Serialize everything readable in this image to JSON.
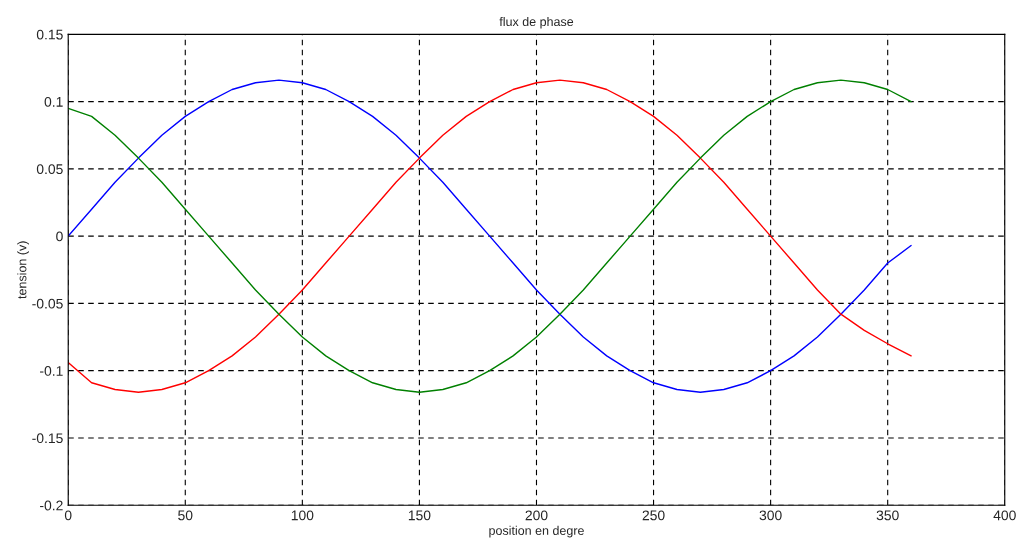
{
  "chart_data": {
    "type": "line",
    "title": "flux de phase",
    "xlabel": "position en degre",
    "ylabel": "tension (v)",
    "x": [
      0,
      10,
      20,
      30,
      40,
      50,
      60,
      70,
      80,
      90,
      100,
      110,
      120,
      130,
      140,
      150,
      160,
      170,
      180,
      190,
      200,
      210,
      220,
      230,
      240,
      250,
      260,
      270,
      280,
      290,
      300,
      310,
      320,
      330,
      340,
      350,
      360
    ],
    "series": [
      {
        "color": "#0000ff",
        "values": [
          0,
          0.02,
          0.04,
          0.058,
          0.075,
          0.089,
          0.1,
          0.109,
          0.114,
          0.116,
          0.114,
          0.109,
          0.1,
          0.089,
          0.075,
          0.058,
          0.04,
          0.02,
          0,
          -0.02,
          -0.04,
          -0.058,
          -0.075,
          -0.089,
          -0.1,
          -0.109,
          -0.114,
          -0.116,
          -0.114,
          -0.109,
          -0.1,
          -0.089,
          -0.075,
          -0.058,
          -0.04,
          -0.02,
          -0.007
        ]
      },
      {
        "color": "#ff0000",
        "values": [
          -0.094,
          -0.109,
          -0.114,
          -0.116,
          -0.114,
          -0.109,
          -0.1,
          -0.089,
          -0.075,
          -0.058,
          -0.04,
          -0.02,
          0,
          0.02,
          0.04,
          0.058,
          0.075,
          0.089,
          0.1,
          0.109,
          0.114,
          0.116,
          0.114,
          0.109,
          0.1,
          0.089,
          0.075,
          0.058,
          0.04,
          0.02,
          0,
          -0.02,
          -0.04,
          -0.058,
          -0.07,
          -0.08,
          -0.089
        ]
      },
      {
        "color": "#008000",
        "values": [
          0.095,
          0.089,
          0.075,
          0.058,
          0.04,
          0.02,
          0,
          -0.02,
          -0.04,
          -0.058,
          -0.075,
          -0.089,
          -0.1,
          -0.109,
          -0.114,
          -0.116,
          -0.114,
          -0.109,
          -0.1,
          -0.089,
          -0.075,
          -0.058,
          -0.04,
          -0.02,
          0,
          0.02,
          0.04,
          0.058,
          0.075,
          0.089,
          0.1,
          0.109,
          0.114,
          0.116,
          0.114,
          0.109,
          0.1
        ]
      }
    ],
    "xlim": [
      0,
      400
    ],
    "xticks": [
      0,
      50,
      100,
      150,
      200,
      250,
      300,
      350,
      400
    ],
    "ylim": [
      -0.2,
      0.15
    ],
    "yticks": [
      -0.2,
      -0.15,
      -0.1,
      -0.05,
      0,
      0.05,
      0.1,
      0.15
    ],
    "grid": true,
    "line_style": "solid",
    "marker": "none"
  }
}
